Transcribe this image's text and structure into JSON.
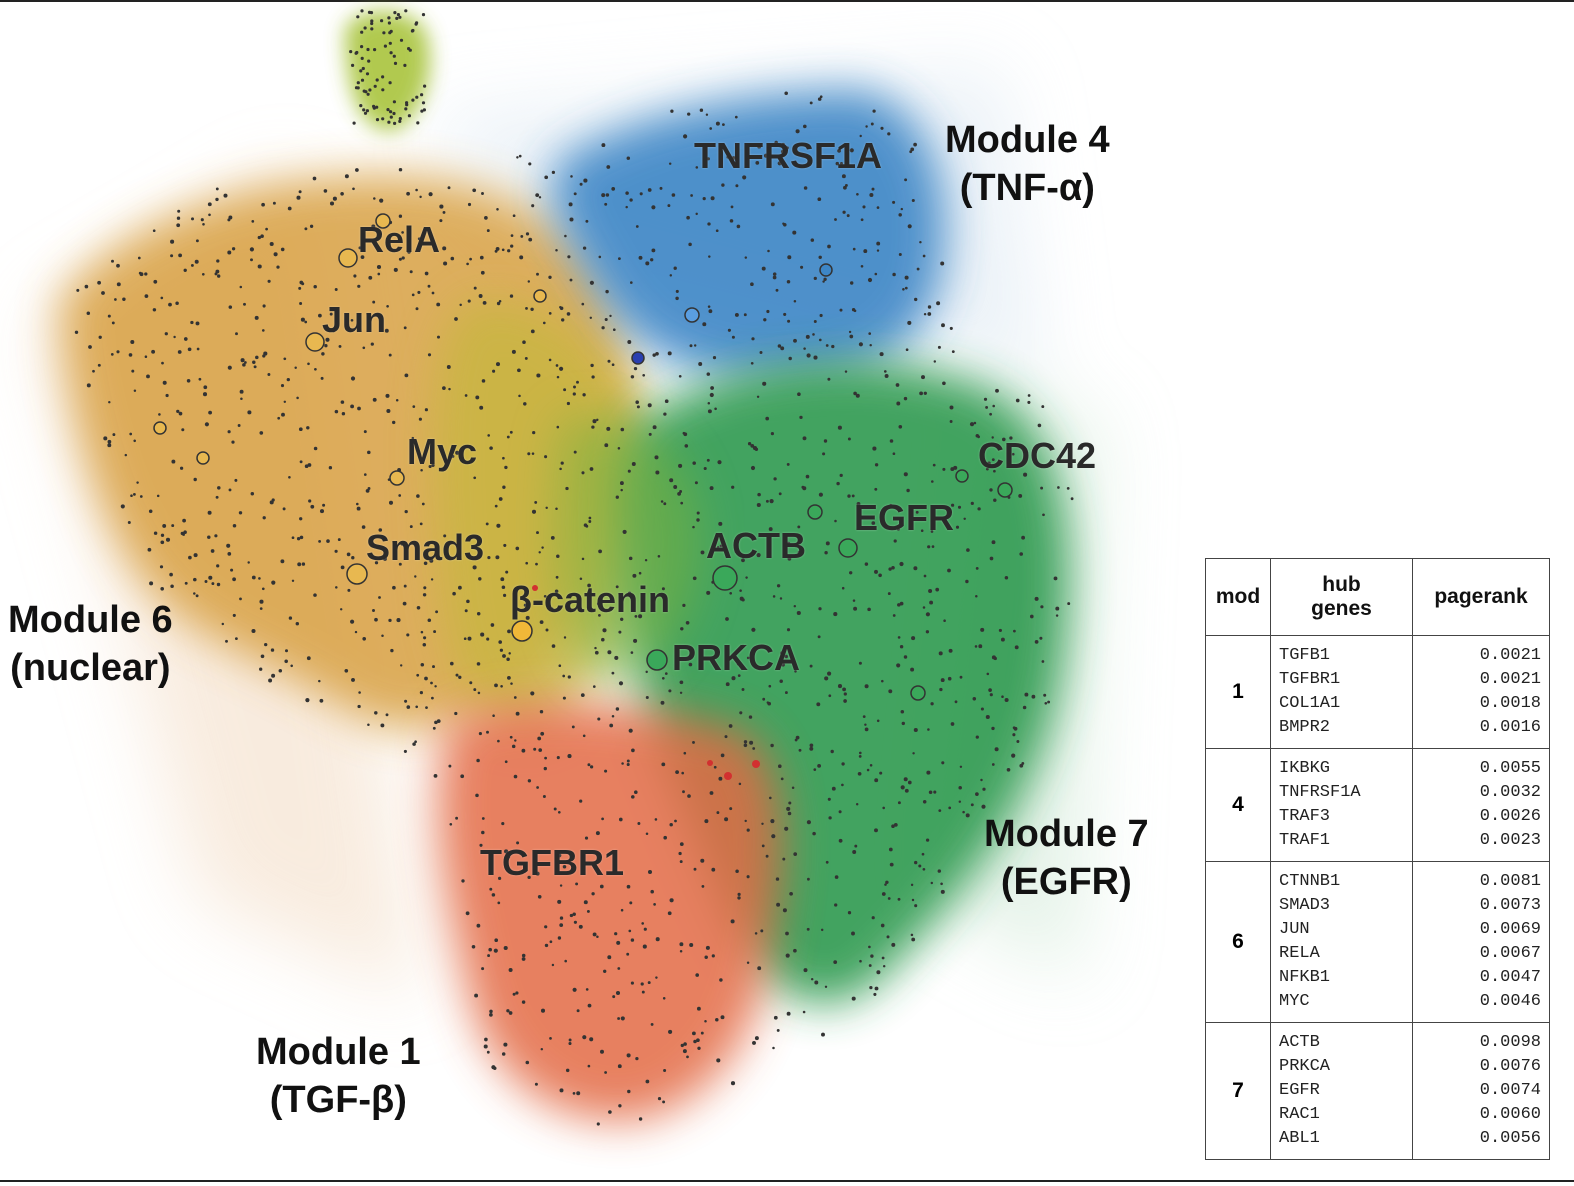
{
  "module_labels": {
    "m4": {
      "line1": "Module 4",
      "line2": "(TNF-α)"
    },
    "m6": {
      "line1": "Module 6",
      "line2": "(nuclear)"
    },
    "m7": {
      "line1": "Module 7",
      "line2": "(EGFR)"
    },
    "m1": {
      "line1": "Module 1",
      "line2": "(TGF-β)"
    }
  },
  "gene_labels": {
    "tnfrsf1a": "TNFRSF1A",
    "rela": "RelA",
    "jun": "Jun",
    "myc": "Myc",
    "smad3": "Smad3",
    "beta_catenin": "β-catenin",
    "actb": "ACTB",
    "egfr": "EGFR",
    "cdc42": "CDC42",
    "prkca": "PRKCA",
    "tgfbr1": "TGFBR1"
  },
  "colors": {
    "module6_orange": "#d8a043",
    "module4_blue": "#3d86c6",
    "module7_green": "#2e9a50",
    "module1_red": "#e36b44",
    "yellow_green": "#a9c43c",
    "node_dot": "#333333"
  },
  "table": {
    "headers": {
      "mod": "mod",
      "hub_line1": "hub",
      "hub_line2": "genes",
      "pagerank": "pagerank"
    },
    "rows": [
      {
        "mod": "1",
        "genes": [
          "TGFB1",
          "TGFBR1",
          "COL1A1",
          "BMPR2"
        ],
        "pagerank": [
          "0.0021",
          "0.0021",
          "0.0018",
          "0.0016"
        ]
      },
      {
        "mod": "4",
        "genes": [
          "IKBKG",
          "TNFRSF1A",
          "TRAF3",
          "TRAF1"
        ],
        "pagerank": [
          "0.0055",
          "0.0032",
          "0.0026",
          "0.0023"
        ]
      },
      {
        "mod": "6",
        "genes": [
          "CTNNB1",
          "SMAD3",
          "JUN",
          "RELA",
          "NFKB1",
          "MYC"
        ],
        "pagerank": [
          "0.0081",
          "0.0073",
          "0.0069",
          "0.0067",
          "0.0047",
          "0.0046"
        ]
      },
      {
        "mod": "7",
        "genes": [
          "ACTB",
          "PRKCA",
          "EGFR",
          "RAC1",
          "ABL1"
        ],
        "pagerank": [
          "0.0098",
          "0.0076",
          "0.0074",
          "0.0060",
          "0.0056"
        ]
      }
    ]
  }
}
